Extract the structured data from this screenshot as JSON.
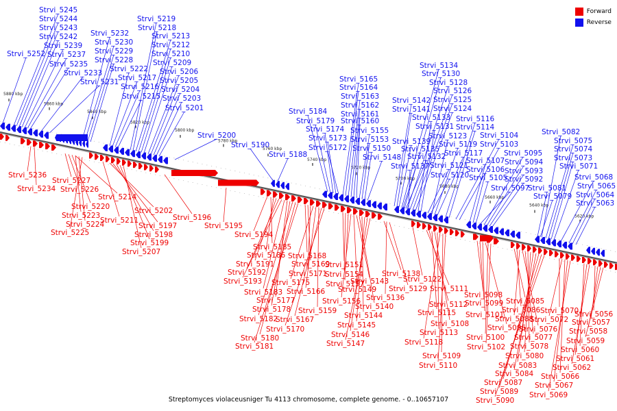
{
  "colors": {
    "forward": "#ee0000",
    "reverse": "#1111ee",
    "axis": "#888888"
  },
  "legend": [
    {
      "label": "Forward",
      "color": "#ee0000"
    },
    {
      "label": "Reverse",
      "color": "#1111ee"
    }
  ],
  "caption": "Streptomyces violaceusniger Tu 4113 chromosome, complete genome. - 0..10657107",
  "ticks": [
    "5880 kbp",
    "5860 kbp",
    "5840 kbp",
    "5820 kbp",
    "5800 kbp",
    "5780 kbp",
    "5760 kbp",
    "5740 kbp",
    "5720 kbp",
    "5700 kbp",
    "5680 kbp",
    "5660 kbp",
    "5640 kbp",
    "5620 kbp"
  ],
  "reverse_labels": [
    "Strvi_5245",
    "Strvi_5244",
    "Strvi_5243",
    "Strvi_5242",
    "Strvi_5239",
    "Strvi_5237",
    "Strvi_5235",
    "Strvi_5233",
    "Strvi_5231",
    "Strvi_5252",
    "Strvi_5232",
    "Strvi_5230",
    "Strvi_5229",
    "Strvi_5228",
    "Strvi_5222",
    "Strvi_5217",
    "Strvi_5216",
    "Strvi_5215",
    "Strvi_5219",
    "Strvi_5218",
    "Strvi_5213",
    "Strvi_5212",
    "Strvi_5210",
    "Strvi_5209",
    "Strvi_5206",
    "Strvi_5205",
    "Strvi_5204",
    "Strvi_5203",
    "Strvi_5201",
    "Strvi_5200",
    "Strvi_5190",
    "Strvi_5188",
    "Strvi_5184",
    "Strvi_5179",
    "Strvi_5174",
    "Strvi_5173",
    "Strvi_5172",
    "Strvi_5165",
    "Strvi_5164",
    "Strvi_5163",
    "Strvi_5162",
    "Strvi_5161",
    "Strvi_5160",
    "Strvi_5155",
    "Strvi_5153",
    "Strvi_5150",
    "Strvi_5148",
    "Strvi_5134",
    "Strvi_5130",
    "Strvi_5128",
    "Strvi_5126",
    "Strvi_5125",
    "Strvi_5124",
    "Strvi_5142",
    "Strvi_5141",
    "Strvi_5133",
    "Strvi_5131",
    "Strvi_5139",
    "Strvi_5135",
    "Strvi_5132",
    "Strvi_5137",
    "Strvi_5123",
    "Strvi_5119",
    "Strvi_5117",
    "Strvi_5121",
    "Strvi_5120",
    "Strvi_5116",
    "Strvi_5114",
    "Strvi_5104",
    "Strvi_5103",
    "Strvi_5107",
    "Strvi_5106",
    "Strvi_5105",
    "Strvi_5097",
    "Strvi_5095",
    "Strvi_5094",
    "Strvi_5093",
    "Strvi_5092",
    "Strvi_5082",
    "Strvi_5075",
    "Strvi_5074",
    "Strvi_5073",
    "Strvi_5071",
    "Strvi_5068",
    "Strvi_5081",
    "Strvi_5079",
    "Strvi_5065",
    "Strvi_5064",
    "Strvi_5063"
  ],
  "forward_labels": [
    "Strvi_5236",
    "Strvi_5234",
    "Strvi_5227",
    "Strvi_5226",
    "Strvi_5214",
    "Strvi_5220",
    "Strvi_5223",
    "Strvi_5224",
    "Strvi_5225",
    "Strvi_5211",
    "Strvi_5202",
    "Strvi_5197",
    "Strvi_5198",
    "Strvi_5199",
    "Strvi_5207",
    "Strvi_5196",
    "Strvi_5195",
    "Strvi_5194",
    "Strvi_5185",
    "Strvi_5186",
    "Strvi_5191",
    "Strvi_5192",
    "Strvi_5193",
    "Strvi_5183",
    "Strvi_5177",
    "Strvi_5178",
    "Strvi_5182",
    "Strvi_5180",
    "Strvi_5181",
    "Strvi_5168",
    "Strvi_5169",
    "Strvi_5171",
    "Strvi_5175",
    "Strvi_5166",
    "Strvi_5159",
    "Strvi_5167",
    "Strvi_5170",
    "Strvi_5151",
    "Strvi_5154",
    "Strvi_5157",
    "Strvi_5156",
    "Strvi_5149",
    "Strvi_5143",
    "Strvi_5140",
    "Strvi_5144",
    "Strvi_5145",
    "Strvi_5146",
    "Strvi_5147",
    "Strvi_5138",
    "Strvi_5136",
    "Strvi_5129",
    "Strvi_5122",
    "Strvi_5111",
    "Strvi_5112",
    "Strvi_5115",
    "Strvi_5108",
    "Strvi_5113",
    "Strvi_5118",
    "Strvi_5109",
    "Strvi_5110",
    "Strvi_5098",
    "Strvi_5099",
    "Strvi_5101",
    "Strvi_5096",
    "Strvi_5100",
    "Strvi_5102",
    "Strvi_5085",
    "Strvi_5086",
    "Strvi_5088",
    "Strvi_5076",
    "Strvi_5077",
    "Strvi_5078",
    "Strvi_5080",
    "Strvi_5083",
    "Strvi_5084",
    "Strvi_5087",
    "Strvi_5089",
    "Strvi_5090",
    "Strvi_5070",
    "Strvi_5072",
    "Strvi_5066",
    "Strvi_5067",
    "Strvi_5069",
    "Strvi_5060",
    "Strvi_5061",
    "Strvi_5062",
    "Strvi_5056",
    "Strvi_5057",
    "Strvi_5058",
    "Strvi_5059"
  ]
}
